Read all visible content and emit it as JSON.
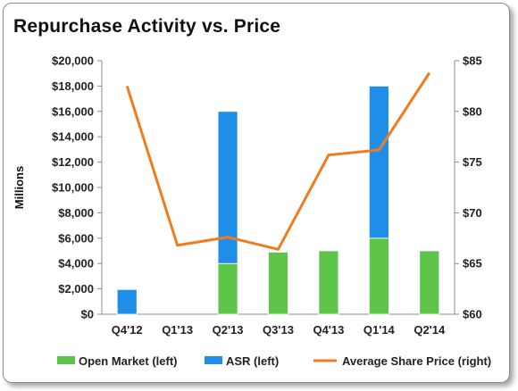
{
  "chart_data": {
    "type": "bar",
    "title": "Repurchase Activity vs. Price",
    "ylabel_left": "Millions",
    "categories": [
      "Q4'12",
      "Q1'13",
      "Q2'13",
      "Q3'13",
      "Q4'13",
      "Q1'14",
      "Q2'14"
    ],
    "left_axis": {
      "range": [
        0,
        20000
      ],
      "ticks": [
        0,
        2000,
        4000,
        6000,
        8000,
        10000,
        12000,
        14000,
        16000,
        18000,
        20000
      ],
      "tick_labels": [
        "$0",
        "$2,000",
        "$4,000",
        "$6,000",
        "$8,000",
        "$10,000",
        "$12,000",
        "$14,000",
        "$16,000",
        "$18,000",
        "$20,000"
      ]
    },
    "right_axis": {
      "range": [
        60,
        85
      ],
      "ticks": [
        60,
        65,
        70,
        75,
        80,
        85
      ],
      "tick_labels": [
        "$60",
        "$65",
        "$70",
        "$75",
        "$80",
        "$85"
      ]
    },
    "grid": false,
    "legend_position": "bottom",
    "series": [
      {
        "name": "Open Market (left)",
        "kind": "bar",
        "axis": "left",
        "color": "#5ec44a",
        "values": [
          0,
          0,
          4000,
          4900,
          5000,
          6000,
          5000
        ]
      },
      {
        "name": "ASR (left)",
        "kind": "bar",
        "axis": "left",
        "color": "#1f8ee8",
        "values": [
          1950,
          0,
          12000,
          0,
          0,
          12000,
          0
        ]
      },
      {
        "name": "Average Share Price (right)",
        "kind": "line",
        "axis": "right",
        "color": "#f07c1e",
        "values": [
          82.5,
          66.8,
          67.6,
          66.4,
          75.7,
          76.2,
          83.8
        ]
      }
    ]
  }
}
